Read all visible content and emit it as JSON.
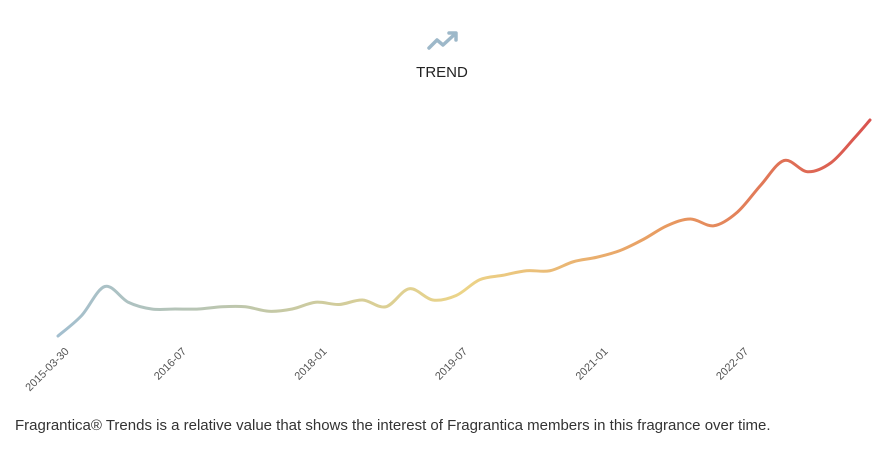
{
  "chart_data": {
    "type": "line",
    "title": "TREND",
    "x": [
      "2015-03",
      "2015-06",
      "2015-09",
      "2015-12",
      "2016-03",
      "2016-06",
      "2016-09",
      "2016-12",
      "2017-03",
      "2017-06",
      "2017-09",
      "2017-12",
      "2018-03",
      "2018-06",
      "2018-09",
      "2018-12",
      "2019-03",
      "2019-06",
      "2019-09",
      "2019-12",
      "2020-03",
      "2020-06",
      "2020-09",
      "2020-12",
      "2021-03",
      "2021-06",
      "2021-09",
      "2021-12",
      "2022-03",
      "2022-06",
      "2022-09",
      "2022-12",
      "2023-03",
      "2023-06",
      "2023-09",
      "2023-11"
    ],
    "values": [
      4,
      13,
      26,
      19,
      16,
      16,
      16,
      17,
      17,
      15,
      16,
      19,
      18,
      20,
      17,
      25,
      20,
      22,
      29,
      31,
      33,
      33,
      37,
      39,
      42,
      47,
      53,
      56,
      53,
      59,
      71,
      82,
      77,
      81,
      92,
      100
    ],
    "xlim": [
      "2015-03",
      "2023-11"
    ],
    "ylim": [
      0,
      100
    ],
    "xticks": [
      "2015-03-30",
      "2016-07",
      "2018-01",
      "2019-07",
      "2021-01",
      "2022-07"
    ],
    "colors": [
      "#a3bfcf",
      "#c2c8a8",
      "#ecd488",
      "#e89a60",
      "#d9534f"
    ],
    "note": "Fragrantica® Trends is a relative value that shows the interest of Fragrantica members in this fragrance over time."
  }
}
